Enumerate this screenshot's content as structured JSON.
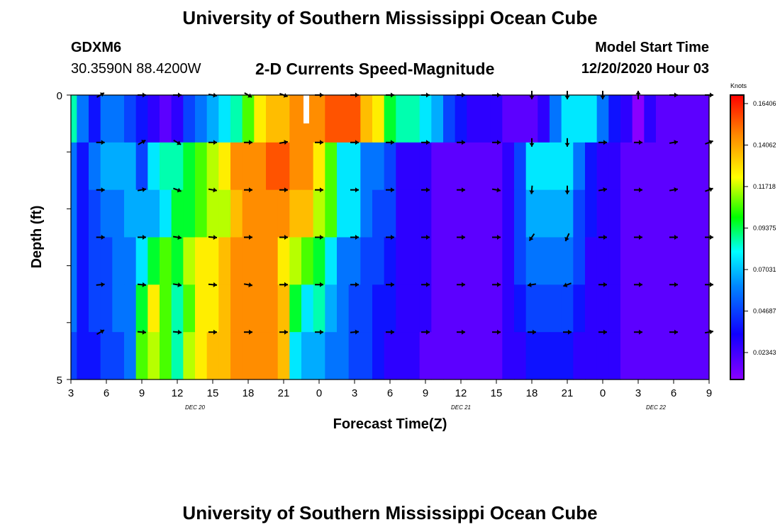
{
  "page": {
    "title_top": "University of Southern Mississippi Ocean Cube",
    "title_bottom": "University of Southern Mississippi Ocean Cube",
    "station": "GDXM6",
    "coords": "30.3590N 88.4200W",
    "model_start_label": "Model Start Time",
    "model_start_value": "12/20/2020 Hour 03"
  },
  "chart_data": {
    "type": "heatmap",
    "title": "2-D Currents Speed-Magnitude",
    "xlabel": "Forecast Time(Z)",
    "ylabel": "Depth (ft)",
    "x_tick_labels": [
      "3",
      "6",
      "9",
      "12",
      "15",
      "18",
      "21",
      "0",
      "3",
      "6",
      "9",
      "12",
      "15",
      "18",
      "21",
      "0",
      "3",
      "6",
      "9"
    ],
    "date_labels": [
      "DEC 20",
      "DEC 21",
      "DEC 22"
    ],
    "y_tick_labels": [
      "0",
      "5"
    ],
    "ylim": [
      0,
      5
    ],
    "x_hours": [
      0,
      54
    ],
    "colorbar": {
      "unit": "Knots",
      "min": 0,
      "max": 0.164,
      "tick_labels": [
        "0.16406",
        "0.14062",
        "0.11718",
        "0.09375",
        "0.07031",
        "0.04687",
        "0.02343"
      ]
    },
    "anchor_hours": [
      0,
      1,
      2,
      3,
      4,
      5,
      6,
      7,
      8,
      9,
      10,
      11,
      12,
      13,
      14,
      15,
      16,
      17,
      18,
      19,
      20,
      21,
      22,
      23,
      24,
      25,
      26,
      27,
      28,
      29,
      30,
      31,
      32,
      33,
      34,
      35,
      36,
      37,
      38,
      39,
      40,
      41,
      42,
      43,
      44,
      45,
      46,
      47,
      48,
      49,
      50,
      51,
      52,
      53,
      54
    ],
    "speed_rows": [
      [
        0.08,
        0.05,
        0.03,
        0.05,
        0.05,
        0.04,
        0.03,
        0.02,
        0.01,
        0.02,
        0.04,
        0.05,
        0.06,
        0.07,
        0.08,
        0.1,
        0.12,
        0.13,
        0.13,
        0.14,
        0.14,
        0.14,
        0.15,
        0.15,
        0.15,
        0.13,
        0.12,
        0.09,
        0.08,
        0.08,
        0.07,
        0.06,
        0.04,
        0.03,
        0.02,
        0.02,
        0.02,
        0.01,
        0.01,
        0.01,
        0.02,
        0.05,
        0.07,
        0.07,
        0.07,
        0.05,
        0.03,
        0.02,
        0.0,
        0.02,
        0.01,
        0.01,
        0.01,
        0.01,
        0.01
      ],
      [
        0.05,
        0.03,
        0.05,
        0.06,
        0.06,
        0.06,
        0.04,
        0.07,
        0.08,
        0.08,
        0.09,
        0.1,
        0.11,
        0.12,
        0.14,
        0.14,
        0.14,
        0.15,
        0.15,
        0.14,
        0.14,
        0.12,
        0.1,
        0.07,
        0.07,
        0.05,
        0.05,
        0.04,
        0.02,
        0.02,
        0.02,
        0.01,
        0.01,
        0.01,
        0.01,
        0.01,
        0.01,
        0.02,
        0.04,
        0.07,
        0.07,
        0.07,
        0.07,
        0.05,
        0.03,
        0.02,
        0.02,
        0.01,
        0.01,
        0.01,
        0.01,
        0.01,
        0.01,
        0.01,
        0.01
      ],
      [
        0.05,
        0.03,
        0.04,
        0.05,
        0.05,
        0.06,
        0.06,
        0.06,
        0.07,
        0.09,
        0.09,
        0.1,
        0.11,
        0.11,
        0.13,
        0.14,
        0.14,
        0.14,
        0.14,
        0.13,
        0.13,
        0.11,
        0.1,
        0.07,
        0.07,
        0.05,
        0.04,
        0.04,
        0.02,
        0.02,
        0.02,
        0.01,
        0.01,
        0.01,
        0.01,
        0.01,
        0.01,
        0.02,
        0.04,
        0.06,
        0.06,
        0.06,
        0.06,
        0.04,
        0.03,
        0.02,
        0.02,
        0.01,
        0.01,
        0.01,
        0.01,
        0.01,
        0.01,
        0.01,
        0.01
      ],
      [
        0.05,
        0.03,
        0.04,
        0.04,
        0.05,
        0.05,
        0.07,
        0.09,
        0.1,
        0.09,
        0.11,
        0.12,
        0.12,
        0.13,
        0.14,
        0.14,
        0.14,
        0.14,
        0.12,
        0.11,
        0.1,
        0.09,
        0.07,
        0.05,
        0.05,
        0.04,
        0.04,
        0.03,
        0.02,
        0.02,
        0.02,
        0.01,
        0.01,
        0.01,
        0.01,
        0.01,
        0.01,
        0.02,
        0.04,
        0.05,
        0.05,
        0.05,
        0.05,
        0.04,
        0.02,
        0.02,
        0.02,
        0.01,
        0.01,
        0.01,
        0.01,
        0.01,
        0.01,
        0.01,
        0.01
      ],
      [
        0.05,
        0.03,
        0.04,
        0.04,
        0.05,
        0.05,
        0.09,
        0.12,
        0.1,
        0.08,
        0.1,
        0.12,
        0.12,
        0.13,
        0.14,
        0.14,
        0.14,
        0.14,
        0.13,
        0.09,
        0.07,
        0.08,
        0.06,
        0.05,
        0.04,
        0.04,
        0.03,
        0.03,
        0.02,
        0.02,
        0.02,
        0.01,
        0.01,
        0.01,
        0.01,
        0.01,
        0.01,
        0.02,
        0.03,
        0.04,
        0.04,
        0.04,
        0.04,
        0.03,
        0.02,
        0.02,
        0.02,
        0.01,
        0.01,
        0.01,
        0.01,
        0.01,
        0.01,
        0.01,
        0.01
      ],
      [
        0.04,
        0.03,
        0.03,
        0.04,
        0.04,
        0.05,
        0.1,
        0.11,
        0.1,
        0.08,
        0.11,
        0.12,
        0.13,
        0.13,
        0.14,
        0.14,
        0.14,
        0.14,
        0.13,
        0.07,
        0.06,
        0.06,
        0.05,
        0.05,
        0.04,
        0.04,
        0.03,
        0.02,
        0.02,
        0.02,
        0.01,
        0.01,
        0.01,
        0.01,
        0.01,
        0.01,
        0.01,
        0.02,
        0.02,
        0.03,
        0.03,
        0.03,
        0.03,
        0.02,
        0.02,
        0.02,
        0.02,
        0.01,
        0.01,
        0.01,
        0.01,
        0.01,
        0.01,
        0.01,
        0.01
      ]
    ],
    "arrow_hours": [
      2.5,
      6,
      9,
      12,
      15,
      18,
      21,
      24,
      27,
      30,
      33,
      36,
      39,
      42,
      45,
      48,
      51,
      54
    ],
    "arrow_dirs_deg": [
      [
        60,
        90,
        90,
        100,
        120,
        110,
        90,
        90,
        90,
        90,
        90,
        90,
        180,
        180,
        180,
        0,
        90,
        90
      ],
      [
        90,
        60,
        120,
        90,
        90,
        80,
        90,
        90,
        90,
        90,
        90,
        90,
        180,
        180,
        90,
        90,
        80,
        70
      ],
      [
        90,
        80,
        110,
        100,
        90,
        90,
        90,
        90,
        90,
        90,
        90,
        100,
        185,
        180,
        80,
        90,
        80,
        70
      ],
      [
        90,
        90,
        100,
        95,
        90,
        90,
        90,
        90,
        90,
        90,
        90,
        90,
        215,
        205,
        90,
        90,
        90,
        90
      ],
      [
        85,
        95,
        100,
        95,
        100,
        90,
        90,
        90,
        90,
        90,
        90,
        90,
        260,
        250,
        90,
        90,
        90,
        90
      ],
      [
        60,
        95,
        95,
        90,
        90,
        90,
        90,
        85,
        90,
        90,
        90,
        90,
        90,
        90,
        90,
        90,
        90,
        80
      ]
    ]
  }
}
